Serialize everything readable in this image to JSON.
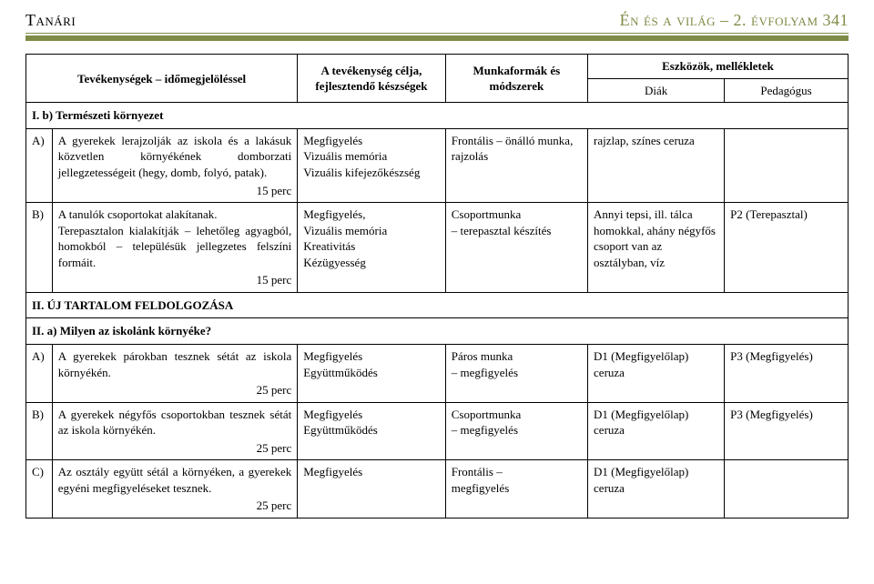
{
  "header": {
    "left": "Tanári",
    "right_title": "Én és a világ – 2. évfolyam",
    "page_number": "341"
  },
  "columns": {
    "activities": "Tevékenységek – időmegjelöléssel",
    "goals": "A tevékenység célja, fejlesztendő készségek",
    "workforms": "Munkaformák és módszerek",
    "tools_head": "Eszközök, mellékletek",
    "diak": "Diák",
    "pedagogus": "Pedagógus"
  },
  "sections": {
    "s1_title": "I. b) Természeti környezet",
    "s2_title": "II. ÚJ TARTALOM FELDOLGOZÁSA",
    "s3_title": "II. a) Milyen az iskolánk környéke?"
  },
  "rows": {
    "r1": {
      "label": "A)",
      "activity": "A gyerekek lerajzolják az iskola és a lakásuk közvetlen környékének domborzati jellegzetességeit (hegy, domb, folyó, patak).",
      "time": "15 perc",
      "goals": "Megfigyelés\nVizuális memória\nVizuális kifejezőkészség",
      "work": "Frontális – önálló munka, rajzolás",
      "diak": "rajzlap, színes ceruza",
      "pedagogus": ""
    },
    "r2": {
      "label": "B)",
      "activity_a": "A tanulók csoportokat alakítanak.",
      "activity_b": "Terepasztalon kialakítják – lehetőleg agyagból, homokból – településük jellegzetes felszíni formáit.",
      "time": "15 perc",
      "goals": "Megfigyelés,\nVizuális memória\nKreativitás\nKézügyesség",
      "work": "Csoportmunka\n– terepasztal készítés",
      "diak": "Annyi tepsi, ill. tálca homokkal, ahány négyfős csoport van az osztályban, víz",
      "pedagogus": "P2 (Terepasztal)"
    },
    "r3": {
      "label": "A)",
      "activity": "A gyerekek párokban tesznek sétát az iskola környékén.",
      "time": "25 perc",
      "goals": "Megfigyelés\nEgyüttműködés",
      "work": "Páros munka\n– megfigyelés",
      "diak": "D1 (Megfigyelőlap)\nceruza",
      "pedagogus": "P3 (Megfigyelés)"
    },
    "r4": {
      "label": "B)",
      "activity": "A gyerekek négyfős csoportokban tesznek sétát az iskola környékén.",
      "time": "25 perc",
      "goals": "Megfigyelés\nEgyüttműködés",
      "work": "Csoportmunka\n– megfigyelés",
      "diak": "D1 (Megfigyelőlap)\nceruza",
      "pedagogus": "P3 (Megfigyelés)"
    },
    "r5": {
      "label": "C)",
      "activity": "Az osztály együtt sétál a környéken, a gyerekek egyéni megfigyeléseket tesznek.",
      "time": "25 perc",
      "goals": "Megfigyelés",
      "work": "Frontális –\nmegfigyelés",
      "diak": "D1 (Megfigyelőlap)\nceruza",
      "pedagogus": ""
    }
  }
}
